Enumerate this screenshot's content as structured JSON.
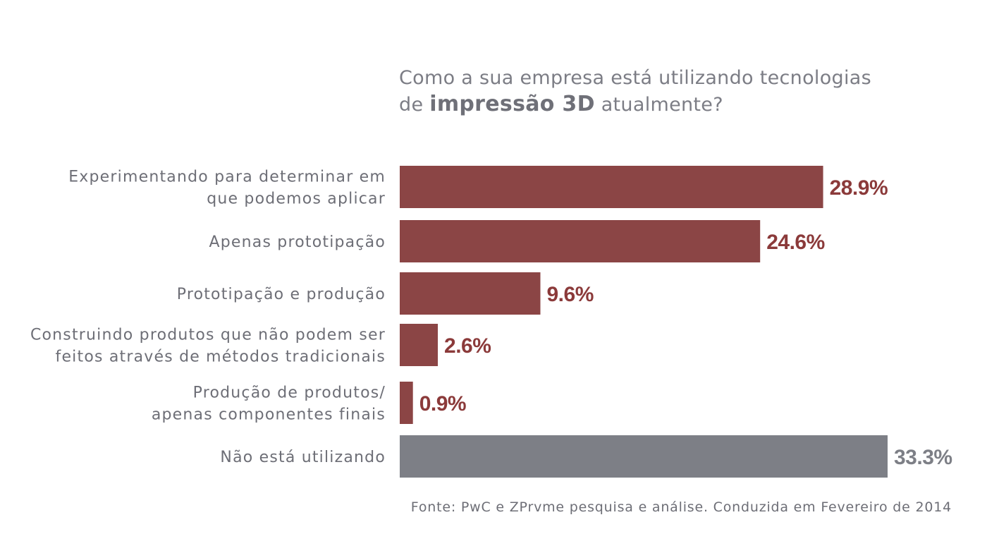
{
  "chart_data": {
    "type": "bar",
    "orientation": "horizontal",
    "title": {
      "line1": "Como a sua empresa está utilizando tecnologias",
      "line2_prefix": "de",
      "line2_emphasis": "impressão 3D",
      "line2_suffix": "atualmente?"
    },
    "categories": [
      [
        "Experimentando para determinar em",
        "que podemos aplicar"
      ],
      [
        "Apenas prototipação"
      ],
      [
        "Prototipação e produção"
      ],
      [
        "Construindo produtos que não podem ser",
        "feitos através de métodos tradicionais"
      ],
      [
        "Produção de produtos/",
        "apenas componentes finais"
      ],
      [
        "Não está utilizando"
      ]
    ],
    "values": [
      28.9,
      24.6,
      9.6,
      2.6,
      0.9,
      33.3
    ],
    "value_labels": [
      "28.9%",
      "24.6%",
      "9.6%",
      "2.6%",
      "0.9%",
      "33.3%"
    ],
    "bar_colors": [
      "#8b4545",
      "#8b4545",
      "#8b4545",
      "#8b4545",
      "#8b4545",
      "#7d7f86"
    ],
    "label_colors": [
      "#8b3a3a",
      "#8b3a3a",
      "#8b3a3a",
      "#8b3a3a",
      "#8b3a3a",
      "#7d7f86"
    ],
    "source": "Fonte: PwC e ZPrvme pesquisa e análise. Conduzida em Fevereiro de 2014",
    "grid": false,
    "legend": "none"
  }
}
